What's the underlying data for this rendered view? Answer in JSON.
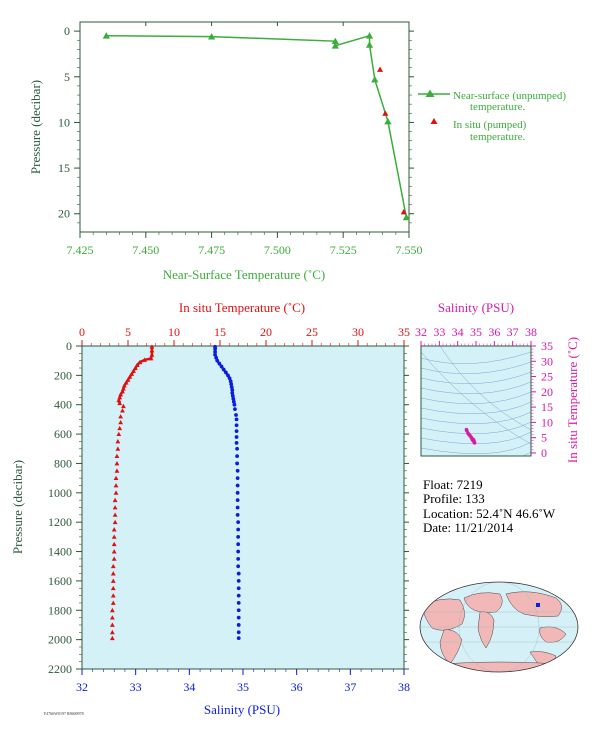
{
  "colors": {
    "green": "#3aad3a",
    "axis_green": "#2d5a3a",
    "red": "#e01010",
    "blue": "#0a1ee0",
    "magenta": "#d81aa8",
    "plot_bg": "#d4f1f8",
    "land": "#f2b8b8",
    "ocean": "#d6f0f8"
  },
  "chart_data": [
    {
      "type": "line",
      "id": "near-surface",
      "xlabel": "Near-Surface Temperature (˚C)",
      "ylabel": "Pressure (decibar)",
      "xlim": [
        7.425,
        7.55
      ],
      "ylim": [
        22,
        -1
      ],
      "x_ticks": [
        "7.425",
        "7.450",
        "7.475",
        "7.500",
        "7.525",
        "7.550"
      ],
      "y_ticks": [
        "0",
        "5",
        "10",
        "15",
        "20"
      ],
      "legend": {
        "position": "right",
        "line1": "Near-surface (unpumped)",
        "line1b": "temperature.",
        "line2": "In situ (pumped)",
        "line2b": "temperature."
      },
      "series": [
        {
          "name": "Near-surface (unpumped) temperature.",
          "marker": "triangle",
          "line": true,
          "points": [
            [
              7.435,
              0.5
            ],
            [
              7.475,
              0.6
            ],
            [
              7.522,
              1.1
            ],
            [
              7.522,
              1.6
            ],
            [
              7.535,
              0.5
            ],
            [
              7.535,
              1.5
            ],
            [
              7.537,
              5.3
            ],
            [
              7.542,
              9.9
            ],
            [
              7.549,
              20.4
            ]
          ]
        },
        {
          "name": "In situ (pumped) temperature.",
          "marker": "triangle",
          "line": false,
          "points": [
            [
              7.539,
              4.2
            ],
            [
              7.541,
              9.0
            ],
            [
              7.548,
              19.8
            ]
          ]
        }
      ]
    },
    {
      "type": "line",
      "id": "profile",
      "ylabel": "Pressure (decibar)",
      "top_xlabel": "In situ Temperature (˚C)",
      "bottom_xlabel": "Salinity (PSU)",
      "temp_lim": [
        0,
        35
      ],
      "sal_lim": [
        32,
        38
      ],
      "ylim": [
        2200,
        0
      ],
      "temp_ticks": [
        "0",
        "5",
        "10",
        "15",
        "20",
        "25",
        "30",
        "35"
      ],
      "sal_ticks": [
        "32",
        "33",
        "34",
        "35",
        "36",
        "37",
        "38"
      ],
      "y_ticks": [
        "0",
        "200",
        "400",
        "600",
        "800",
        "1000",
        "1200",
        "1400",
        "1600",
        "1800",
        "2000",
        "2200"
      ],
      "series": [
        {
          "name": "In situ Temperature",
          "marker": "triangle",
          "points": [
            [
              7.6,
              5
            ],
            [
              7.6,
              30
            ],
            [
              7.6,
              60
            ],
            [
              7.5,
              85
            ],
            [
              6.8,
              95
            ],
            [
              6.3,
              110
            ],
            [
              6.0,
              130
            ],
            [
              5.8,
              150
            ],
            [
              5.6,
              170
            ],
            [
              5.4,
              190
            ],
            [
              5.2,
              210
            ],
            [
              5.0,
              230
            ],
            [
              4.8,
              250
            ],
            [
              4.6,
              270
            ],
            [
              4.5,
              290
            ],
            [
              4.4,
              310
            ],
            [
              4.2,
              330
            ],
            [
              4.1,
              350
            ],
            [
              4.0,
              370
            ],
            [
              4.1,
              390
            ],
            [
              4.5,
              410
            ],
            [
              4.4,
              440
            ],
            [
              4.2,
              480
            ],
            [
              4.2,
              520
            ],
            [
              4.1,
              560
            ],
            [
              4.0,
              600
            ],
            [
              3.9,
              650
            ],
            [
              3.9,
              700
            ],
            [
              3.8,
              750
            ],
            [
              3.8,
              800
            ],
            [
              3.8,
              850
            ],
            [
              3.7,
              900
            ],
            [
              3.7,
              950
            ],
            [
              3.7,
              1000
            ],
            [
              3.6,
              1050
            ],
            [
              3.6,
              1100
            ],
            [
              3.6,
              1150
            ],
            [
              3.6,
              1200
            ],
            [
              3.5,
              1250
            ],
            [
              3.5,
              1300
            ],
            [
              3.5,
              1350
            ],
            [
              3.5,
              1400
            ],
            [
              3.5,
              1450
            ],
            [
              3.4,
              1500
            ],
            [
              3.4,
              1550
            ],
            [
              3.4,
              1600
            ],
            [
              3.4,
              1650
            ],
            [
              3.4,
              1700
            ],
            [
              3.4,
              1750
            ],
            [
              3.3,
              1800
            ],
            [
              3.3,
              1850
            ],
            [
              3.3,
              1900
            ],
            [
              3.3,
              1950
            ],
            [
              3.3,
              1990
            ]
          ]
        },
        {
          "name": "Salinity",
          "marker": "circle",
          "points": [
            [
              34.48,
              5
            ],
            [
              34.48,
              20
            ],
            [
              34.48,
              40
            ],
            [
              34.48,
              60
            ],
            [
              34.5,
              80
            ],
            [
              34.52,
              100
            ],
            [
              34.56,
              120
            ],
            [
              34.6,
              140
            ],
            [
              34.64,
              160
            ],
            [
              34.68,
              180
            ],
            [
              34.72,
              200
            ],
            [
              34.75,
              220
            ],
            [
              34.77,
              240
            ],
            [
              34.78,
              260
            ],
            [
              34.79,
              280
            ],
            [
              34.8,
              300
            ],
            [
              34.8,
              320
            ],
            [
              34.81,
              340
            ],
            [
              34.82,
              360
            ],
            [
              34.83,
              380
            ],
            [
              34.84,
              400
            ],
            [
              34.85,
              430
            ],
            [
              34.87,
              470
            ],
            [
              34.88,
              500
            ],
            [
              34.88,
              540
            ],
            [
              34.88,
              580
            ],
            [
              34.88,
              620
            ],
            [
              34.88,
              660
            ],
            [
              34.89,
              700
            ],
            [
              34.89,
              750
            ],
            [
              34.89,
              800
            ],
            [
              34.9,
              850
            ],
            [
              34.9,
              900
            ],
            [
              34.9,
              950
            ],
            [
              34.9,
              1000
            ],
            [
              34.9,
              1050
            ],
            [
              34.9,
              1100
            ],
            [
              34.9,
              1150
            ],
            [
              34.91,
              1200
            ],
            [
              34.91,
              1250
            ],
            [
              34.91,
              1300
            ],
            [
              34.91,
              1350
            ],
            [
              34.91,
              1400
            ],
            [
              34.91,
              1450
            ],
            [
              34.91,
              1500
            ],
            [
              34.92,
              1550
            ],
            [
              34.92,
              1600
            ],
            [
              34.92,
              1650
            ],
            [
              34.92,
              1700
            ],
            [
              34.92,
              1750
            ],
            [
              34.92,
              1800
            ],
            [
              34.92,
              1850
            ],
            [
              34.92,
              1900
            ],
            [
              34.92,
              1950
            ],
            [
              34.92,
              1990
            ]
          ]
        }
      ]
    },
    {
      "type": "scatter",
      "id": "ts-diagram",
      "top_xlabel": "Salinity (PSU)",
      "right_ylabel": "In situ Temperature (˚C)",
      "xlim": [
        32,
        38
      ],
      "ylim": [
        -1,
        35
      ],
      "x_ticks": [
        "32",
        "33",
        "34",
        "35",
        "36",
        "37",
        "38"
      ],
      "y_ticks": [
        "0",
        "5",
        "10",
        "15",
        "20",
        "25",
        "30",
        "35"
      ],
      "series": [
        {
          "name": "T-S",
          "marker": "circle",
          "points": [
            [
              34.48,
              7.6
            ],
            [
              34.5,
              7.3
            ],
            [
              34.56,
              6.5
            ],
            [
              34.62,
              6.0
            ],
            [
              34.68,
              5.6
            ],
            [
              34.74,
              5.1
            ],
            [
              34.78,
              4.7
            ],
            [
              34.8,
              4.4
            ],
            [
              34.83,
              4.1
            ],
            [
              34.85,
              4.4
            ],
            [
              34.87,
              4.2
            ],
            [
              34.88,
              4.0
            ],
            [
              34.89,
              3.8
            ],
            [
              34.9,
              3.6
            ],
            [
              34.91,
              3.5
            ],
            [
              34.92,
              3.3
            ]
          ]
        }
      ]
    }
  ],
  "info": {
    "float": "Float:  7219",
    "profile": "Profile:  133",
    "location": "Location:  52.4˚N  46.6˚W",
    "date": "Date:  11/21/2014"
  },
  "footer_text": "F4766W0197 R8600978"
}
